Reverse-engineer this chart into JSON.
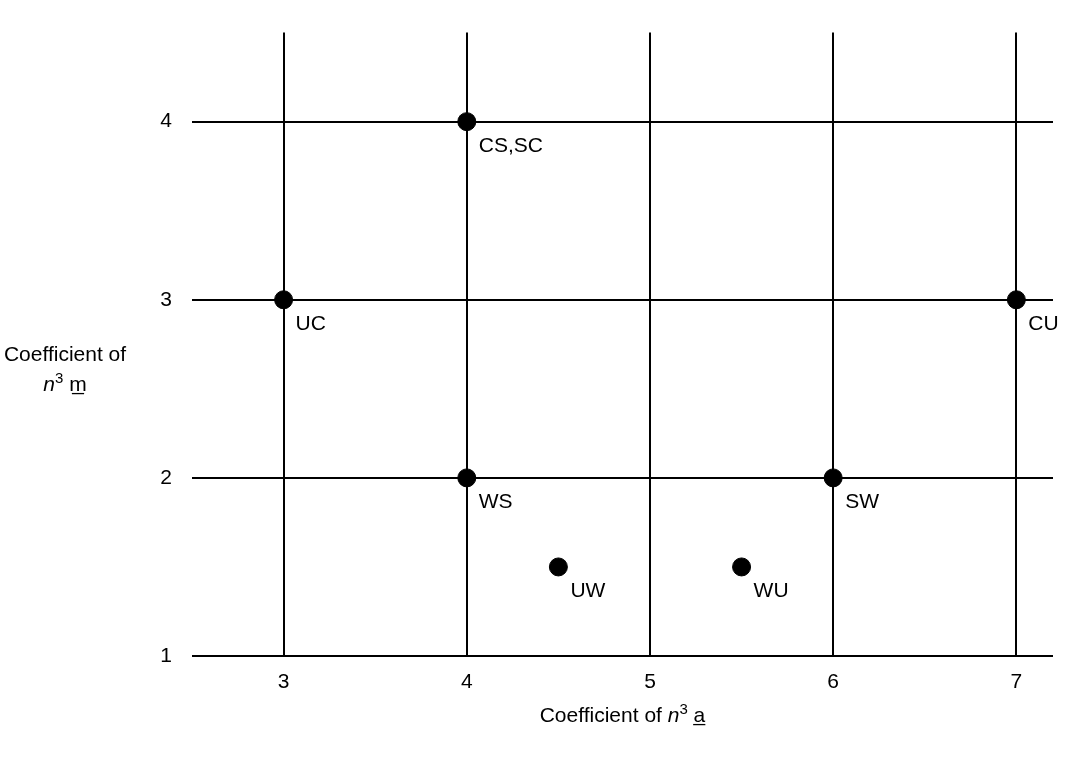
{
  "chart_data": {
    "type": "scatter",
    "xlabel": "Coefficient of n$^{3}$ a̲",
    "ylabel": "Coefficient of n$^{3}$ m̲",
    "series": [
      {
        "color": "#000000",
        "x": [
          4,
          3,
          7,
          4,
          6,
          4.5,
          5.5
        ],
        "values": [
          4,
          3,
          3,
          2,
          2,
          1.5,
          1.5
        ]
      }
    ],
    "marker": "circle",
    "grid": true,
    "legend": false,
    "xlim": [
      2.5,
      7.2
    ],
    "xticks": [
      3,
      4,
      5,
      6,
      7
    ],
    "ylim": [
      1,
      4.5
    ],
    "yticks": [
      1,
      2,
      3,
      4
    ],
    "annotations": [
      {
        "text": "CS,SC",
        "x": 4,
        "y": 4
      },
      {
        "text": "UC",
        "x": 3,
        "y": 3
      },
      {
        "text": "CU",
        "x": 7,
        "y": 3
      },
      {
        "text": "WS",
        "x": 4,
        "y": 2
      },
      {
        "text": "SW",
        "x": 6,
        "y": 2
      },
      {
        "text": "UW",
        "x": 4.5,
        "y": 1.5
      },
      {
        "text": "WU",
        "x": 5.5,
        "y": 1.5
      }
    ]
  }
}
